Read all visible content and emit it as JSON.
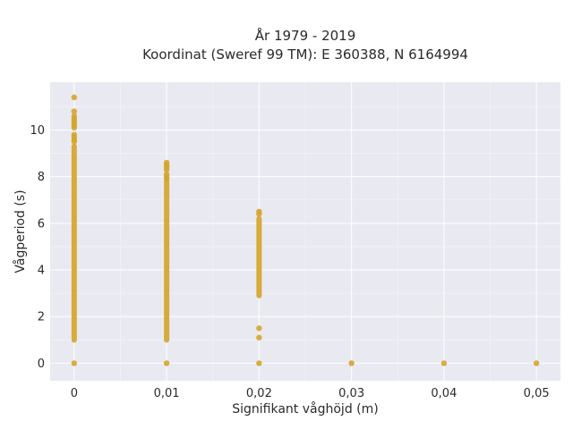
{
  "chart_data": {
    "type": "scatter",
    "title_lines": [
      "År 1979 - 2019",
      "Koordinat (Sweref 99 TM): E 360388, N 6164994"
    ],
    "xlabel": "Signifikant våghöjd (m)",
    "ylabel": "Vågperiod (s)",
    "xlim": [
      -0.0026,
      0.0526
    ],
    "ylim": [
      -0.75,
      12.05
    ],
    "x_ticks": [
      0,
      0.01,
      0.02,
      0.03,
      0.04,
      0.05
    ],
    "x_tick_labels": [
      "0",
      "0,01",
      "0,02",
      "0,03",
      "0,04",
      "0,05"
    ],
    "y_ticks": [
      0,
      2,
      4,
      6,
      8,
      10
    ],
    "y_tick_labels": [
      "0",
      "2",
      "4",
      "6",
      "8",
      "10"
    ],
    "grid": true,
    "background": "#e9e9f1",
    "marker_color": "#d4a52b",
    "series": [
      {
        "color": "#d4a52b",
        "columns": [
          {
            "x": 0,
            "points": [
              0,
              11.4,
              10.8,
              10.6,
              10.5,
              10.4,
              10.3,
              10.2,
              10.1,
              9.8,
              9.7,
              9.6,
              9.5
            ],
            "y_range": [
              1.0,
              9.3
            ]
          },
          {
            "x": 0.01,
            "points": [
              0,
              8.6,
              8.5,
              8.4,
              8.3,
              8.1,
              8.0,
              7.9
            ],
            "y_range": [
              1.0,
              7.8
            ]
          },
          {
            "x": 0.02,
            "points": [
              0,
              1.1,
              1.5,
              6.5,
              6.4
            ],
            "y_range": [
              2.9,
              6.2
            ]
          },
          {
            "x": 0.03,
            "points": [
              0
            ],
            "y_range": null
          },
          {
            "x": 0.04,
            "points": [
              0
            ],
            "y_range": null
          },
          {
            "x": 0.05,
            "points": [
              0
            ],
            "y_range": null
          }
        ]
      }
    ]
  }
}
